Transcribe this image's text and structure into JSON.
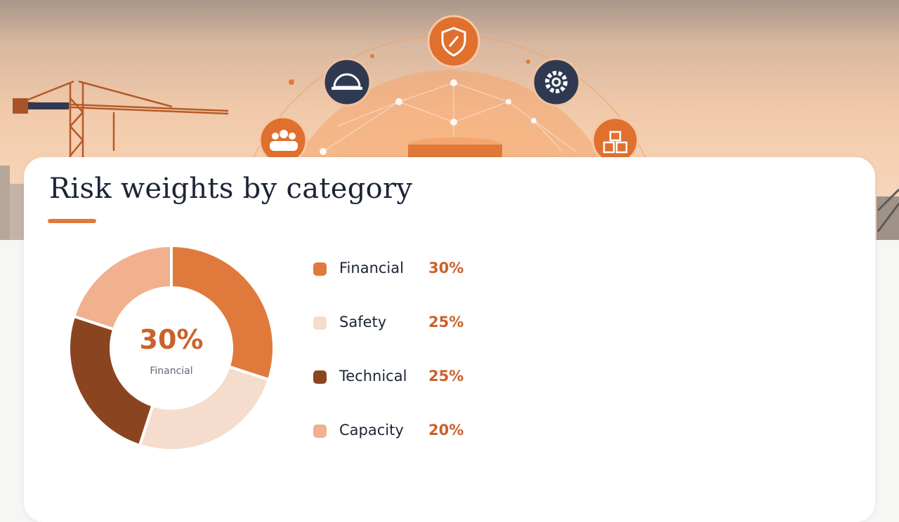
{
  "hero": {
    "icons": [
      "team-icon",
      "hard-hat-icon",
      "shield-icon",
      "gear-icon",
      "boxes-icon"
    ]
  },
  "chart_data": {
    "type": "pie",
    "title": "Risk weights by category",
    "center": {
      "value": "30%",
      "label": "Financial"
    },
    "categories": [
      "Financial",
      "Safety",
      "Technical",
      "Capacity"
    ],
    "values": [
      30,
      25,
      25,
      20
    ],
    "labels": [
      "30%",
      "25%",
      "25%",
      "20%"
    ],
    "colors": [
      "#e07a3c",
      "#f6dccd",
      "#8a4520",
      "#f1b08e"
    ],
    "legend_placement": "right"
  }
}
